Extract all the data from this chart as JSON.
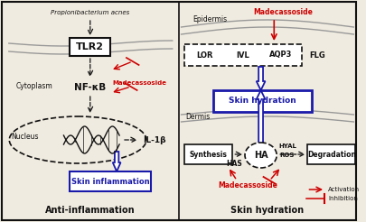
{
  "title_left": "Anti-inflammation",
  "title_right": "Skin hydration",
  "bg_color": "#f0ebe0",
  "left_panel": {
    "bacteria_text": "Propionibacterium acnes",
    "tlr2": "TLR2",
    "cytoplasm": "Cytoplasm",
    "nf_kb": "NF-κB",
    "madecassoside1": "Madecassoside",
    "nucleus": "Nucleus",
    "il1b": "IL-1β",
    "skin_inflammation": "Skin inflammation"
  },
  "right_panel": {
    "epidermis": "Epidermis",
    "madecassoside2": "Madecassoside",
    "lor": "LOR",
    "ivl": "IVL",
    "aqp3": "AQP3",
    "flg": "FLG",
    "skin_hydration": "Skin hydration",
    "dermis": "Dermis",
    "synthesis": "Synthesis",
    "has": "HAS",
    "ha": "HA",
    "hyal": "HYAL",
    "ros": "ROS",
    "degradation": "Degradation",
    "madecassoside3": "Madecassoside",
    "activation": "Activation",
    "inhibition": "Inhibition"
  },
  "red": "#cc0000",
  "blue": "#1a1aaa",
  "black": "#111111"
}
